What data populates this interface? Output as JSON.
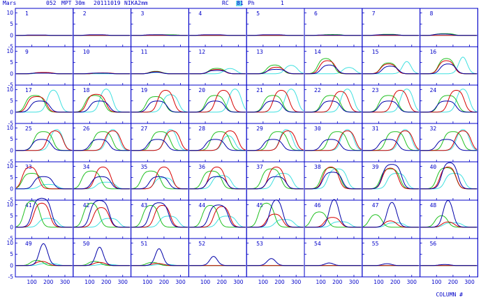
{
  "header": {
    "source": "Mars",
    "scan": "052",
    "telescope": "MPT 30m",
    "date": "20111019",
    "instrument": "NIKA2mm",
    "rc_label": "RC",
    "rc_value": "81",
    "ph_label": "Ph",
    "ph_value": "1"
  },
  "footer": {
    "xaxis_label": "COLUMN #"
  },
  "colors": {
    "axes": "#0000c8",
    "red": "#d60000",
    "green": "#21c021",
    "cyan": "#3fe0e0",
    "blue": "#0000a8",
    "highlight": "#6cd8ee"
  },
  "chart_data": {
    "type": "line",
    "grid_rows": 7,
    "grid_cols": 8,
    "panel_ids": [
      1,
      2,
      3,
      4,
      5,
      6,
      7,
      8,
      9,
      10,
      11,
      12,
      13,
      14,
      15,
      16,
      17,
      18,
      19,
      20,
      21,
      22,
      23,
      24,
      25,
      26,
      27,
      28,
      29,
      30,
      31,
      32,
      33,
      34,
      35,
      36,
      37,
      38,
      39,
      40,
      41,
      42,
      43,
      44,
      45,
      46,
      47,
      48,
      49,
      50,
      51,
      52,
      53,
      54,
      55,
      56
    ],
    "xlim": [
      0,
      350
    ],
    "ylim": [
      -5,
      12
    ],
    "x_ticks": [
      100,
      200,
      300
    ],
    "y_ticks": [
      -5,
      0,
      5,
      10
    ],
    "xlabel": "COLUMN #",
    "ylabel": "",
    "panels": [
      {
        "id": 1,
        "red": [
          0,
          0
        ],
        "green": [
          0,
          0
        ],
        "cyan": [
          0,
          0
        ],
        "blue": [
          0.2,
          130,
          70
        ]
      },
      {
        "id": 2,
        "red": [
          0,
          0
        ],
        "green": [
          0,
          0
        ],
        "cyan": [
          0,
          0
        ],
        "blue": [
          0.3,
          140,
          70
        ]
      },
      {
        "id": 3,
        "red": [
          0,
          0
        ],
        "green": [
          0.3,
          200,
          90
        ],
        "cyan": [
          0,
          0
        ],
        "blue": [
          0.3,
          150,
          70
        ]
      },
      {
        "id": 4,
        "red": [
          0,
          0
        ],
        "green": [
          0,
          0
        ],
        "cyan": [
          0,
          0
        ],
        "blue": [
          0.3,
          140,
          80
        ]
      },
      {
        "id": 5,
        "red": [
          0,
          0
        ],
        "green": [
          0,
          0
        ],
        "cyan": [
          0,
          0
        ],
        "blue": [
          0.3,
          150,
          80
        ]
      },
      {
        "id": 6,
        "red": [
          0,
          0
        ],
        "green": [
          0.4,
          170,
          60
        ],
        "cyan": [
          0,
          0
        ],
        "blue": [
          0.2,
          150,
          80
        ]
      },
      {
        "id": 7,
        "red": [
          0,
          0
        ],
        "green": [
          0.5,
          160,
          60
        ],
        "cyan": [
          0,
          0
        ],
        "blue": [
          0.3,
          150,
          80
        ]
      },
      {
        "id": 8,
        "red": [
          0,
          0
        ],
        "green": [
          0.8,
          150,
          60
        ],
        "cyan": [
          0,
          0
        ],
        "blue": [
          0.6,
          140,
          60
        ]
      },
      {
        "id": 9,
        "red": [
          0.6,
          170,
          60
        ],
        "green": [
          0.5,
          170,
          60
        ],
        "cyan": [
          0.4,
          180,
          60
        ],
        "blue": [
          0.3,
          160,
          70
        ]
      },
      {
        "id": 10,
        "red": [
          0.4,
          180,
          60
        ],
        "green": [
          0.3,
          180,
          60
        ],
        "cyan": [
          0,
          0
        ],
        "blue": [
          0.3,
          160,
          70
        ]
      },
      {
        "id": 11,
        "red": [
          1.0,
          150,
          40
        ],
        "green": [
          1.2,
          150,
          40
        ],
        "cyan": [
          0.6,
          160,
          50
        ],
        "blue": [
          0.8,
          150,
          40
        ]
      },
      {
        "id": 12,
        "red": [
          2.0,
          170,
          50
        ],
        "green": [
          2.5,
          170,
          50
        ],
        "cyan": [
          2.5,
          250,
          40
        ],
        "blue": [
          1.5,
          170,
          60
        ]
      },
      {
        "id": 13,
        "red": [
          3.0,
          180,
          50
        ],
        "green": [
          4.0,
          170,
          50
        ],
        "cyan": [
          4.0,
          270,
          40
        ],
        "blue": [
          2.0,
          180,
          60
        ]
      },
      {
        "id": 14,
        "red": [
          6.0,
          140,
          50
        ],
        "green": [
          7.0,
          130,
          50
        ],
        "cyan": [
          3.0,
          270,
          40
        ],
        "blue": [
          4.0,
          150,
          50
        ]
      },
      {
        "id": 15,
        "red": [
          4.5,
          160,
          50
        ],
        "green": [
          5.0,
          160,
          50
        ],
        "cyan": [
          7.0,
          270,
          25
        ],
        "blue": [
          3.5,
          170,
          50
        ]
      },
      {
        "id": 16,
        "red": [
          6.0,
          160,
          50
        ],
        "green": [
          7.0,
          160,
          50
        ],
        "cyan": [
          9.5,
          260,
          25
        ],
        "blue": [
          4.5,
          170,
          50
        ]
      },
      {
        "id": 17,
        "red": [
          7.0,
          130,
          60
        ],
        "green": [
          7.5,
          120,
          60
        ],
        "cyan": [
          10.5,
          230,
          40
        ],
        "blue": [
          5.0,
          150,
          60
        ]
      },
      {
        "id": 18,
        "red": [
          8.0,
          140,
          60
        ],
        "green": [
          7.5,
          130,
          60
        ],
        "cyan": [
          11.0,
          200,
          40
        ],
        "blue": [
          5.0,
          160,
          60
        ]
      },
      {
        "id": 19,
        "red": [
          10.0,
          210,
          50
        ],
        "green": [
          7.0,
          150,
          60
        ],
        "cyan": [
          8.0,
          240,
          50
        ],
        "blue": [
          5.0,
          160,
          60
        ]
      },
      {
        "id": 20,
        "red": [
          10.0,
          210,
          50
        ],
        "green": [
          7.5,
          160,
          60
        ],
        "cyan": [
          11.0,
          280,
          40
        ],
        "blue": [
          5.0,
          160,
          60
        ]
      },
      {
        "id": 21,
        "red": [
          10.0,
          210,
          50
        ],
        "green": [
          7.5,
          160,
          60
        ],
        "cyan": [
          11.0,
          270,
          40
        ],
        "blue": [
          5.0,
          160,
          60
        ]
      },
      {
        "id": 22,
        "red": [
          9.5,
          220,
          50
        ],
        "green": [
          7.5,
          160,
          60
        ],
        "cyan": [
          11.0,
          260,
          40
        ],
        "blue": [
          5.0,
          160,
          60
        ]
      },
      {
        "id": 23,
        "red": [
          10.0,
          230,
          50
        ],
        "green": [
          7.5,
          160,
          60
        ],
        "cyan": [
          11.0,
          270,
          40
        ],
        "blue": [
          5.0,
          160,
          60
        ]
      },
      {
        "id": 24,
        "red": [
          10.0,
          220,
          50
        ],
        "green": [
          7.5,
          170,
          60
        ],
        "cyan": [
          11.0,
          260,
          40
        ],
        "blue": [
          5.0,
          160,
          60
        ]
      },
      {
        "id": 25,
        "red": [
          9.0,
          240,
          50
        ],
        "green": [
          8.5,
          170,
          60
        ],
        "cyan": [
          10.0,
          250,
          40
        ],
        "blue": [
          5.0,
          160,
          60
        ]
      },
      {
        "id": 26,
        "red": [
          9.0,
          240,
          50
        ],
        "green": [
          8.5,
          180,
          60
        ],
        "cyan": [
          10.0,
          240,
          40
        ],
        "blue": [
          5.0,
          160,
          60
        ]
      },
      {
        "id": 27,
        "red": [
          9.0,
          250,
          50
        ],
        "green": [
          8.5,
          180,
          60
        ],
        "cyan": [
          10.0,
          240,
          40
        ],
        "blue": [
          5.0,
          160,
          60
        ]
      },
      {
        "id": 28,
        "red": [
          9.0,
          250,
          50
        ],
        "green": [
          8.5,
          190,
          60
        ],
        "cyan": [
          7.0,
          240,
          40
        ],
        "blue": [
          5.0,
          160,
          60
        ]
      },
      {
        "id": 29,
        "red": [
          9.0,
          250,
          50
        ],
        "green": [
          8.5,
          190,
          60
        ],
        "cyan": [
          10.0,
          240,
          40
        ],
        "blue": [
          5.0,
          160,
          60
        ]
      },
      {
        "id": 30,
        "red": [
          9.0,
          260,
          50
        ],
        "green": [
          8.5,
          200,
          60
        ],
        "cyan": [
          10.0,
          260,
          40
        ],
        "blue": [
          5.0,
          160,
          60
        ]
      },
      {
        "id": 31,
        "red": [
          9.0,
          260,
          50
        ],
        "green": [
          8.5,
          200,
          60
        ],
        "cyan": [
          10.0,
          260,
          40
        ],
        "blue": [
          5.0,
          160,
          60
        ]
      },
      {
        "id": 32,
        "red": [
          9.0,
          260,
          50
        ],
        "green": [
          8.5,
          200,
          60
        ],
        "cyan": [
          10.0,
          260,
          40
        ],
        "blue": [
          5.0,
          160,
          60
        ]
      },
      {
        "id": 33,
        "red": [
          10.0,
          90,
          50
        ],
        "green": [
          7.0,
          100,
          60
        ],
        "cyan": [
          2.0,
          200,
          60
        ],
        "blue": [
          5.5,
          170,
          60
        ]
      },
      {
        "id": 34,
        "red": [
          10.0,
          180,
          50
        ],
        "green": [
          8.0,
          110,
          60
        ],
        "cyan": [
          3.0,
          200,
          60
        ],
        "blue": [
          5.5,
          170,
          60
        ]
      },
      {
        "id": 35,
        "red": [
          10.0,
          200,
          50
        ],
        "green": [
          8.0,
          120,
          60
        ],
        "cyan": [
          5.0,
          200,
          60
        ],
        "blue": [
          5.5,
          170,
          60
        ]
      },
      {
        "id": 36,
        "red": [
          10.0,
          170,
          50
        ],
        "green": [
          8.0,
          140,
          60
        ],
        "cyan": [
          6.0,
          200,
          60
        ],
        "blue": [
          5.5,
          170,
          60
        ]
      },
      {
        "id": 37,
        "red": [
          10.0,
          180,
          50
        ],
        "green": [
          9.0,
          150,
          60
        ],
        "cyan": [
          7.0,
          220,
          60
        ],
        "blue": [
          5.5,
          180,
          60
        ]
      },
      {
        "id": 38,
        "red": [
          10.0,
          160,
          50
        ],
        "green": [
          9.5,
          160,
          60
        ],
        "cyan": [
          9.0,
          200,
          60
        ],
        "blue": [
          7.5,
          170,
          60
        ]
      },
      {
        "id": 39,
        "red": [
          9.5,
          170,
          50
        ],
        "green": [
          9.0,
          170,
          60
        ],
        "cyan": [
          7.0,
          210,
          60
        ],
        "blue": [
          11.0,
          180,
          60
        ]
      },
      {
        "id": 40,
        "red": [
          10.0,
          170,
          50
        ],
        "green": [
          9.5,
          160,
          60
        ],
        "cyan": [
          7.0,
          210,
          60
        ],
        "blue": [
          12.0,
          180,
          50
        ]
      },
      {
        "id": 41,
        "red": [
          11.0,
          160,
          50
        ],
        "green": [
          12.0,
          100,
          50
        ],
        "cyan": [
          4.0,
          200,
          60
        ],
        "blue": [
          13.0,
          160,
          60
        ]
      },
      {
        "id": 42,
        "red": [
          9.0,
          170,
          50
        ],
        "green": [
          11.0,
          110,
          50
        ],
        "cyan": [
          4.0,
          220,
          60
        ],
        "blue": [
          12.0,
          160,
          60
        ]
      },
      {
        "id": 43,
        "red": [
          10.0,
          190,
          50
        ],
        "green": [
          10.0,
          120,
          50
        ],
        "cyan": [
          5.0,
          230,
          60
        ],
        "blue": [
          11.0,
          170,
          60
        ]
      },
      {
        "id": 44,
        "red": [
          9.5,
          200,
          50
        ],
        "green": [
          10.0,
          130,
          50
        ],
        "cyan": [
          5.0,
          230,
          60
        ],
        "blue": [
          10.0,
          180,
          60
        ]
      },
      {
        "id": 45,
        "red": [
          6.0,
          170,
          50
        ],
        "green": [
          11.0,
          120,
          50
        ],
        "cyan": [
          3.5,
          230,
          60
        ],
        "blue": [
          13.0,
          180,
          40
        ]
      },
      {
        "id": 46,
        "red": [
          4.5,
          170,
          50
        ],
        "green": [
          7.0,
          90,
          50
        ],
        "cyan": [
          2.5,
          220,
          60
        ],
        "blue": [
          14.5,
          180,
          30
        ]
      },
      {
        "id": 47,
        "red": [
          3.0,
          170,
          40
        ],
        "green": [
          6.0,
          80,
          40
        ],
        "cyan": [
          2.0,
          200,
          60
        ],
        "blue": [
          13.0,
          180,
          30
        ]
      },
      {
        "id": 48,
        "red": [
          2.5,
          170,
          40
        ],
        "green": [
          5.5,
          130,
          40
        ],
        "cyan": [
          2.0,
          200,
          60
        ],
        "blue": [
          14.0,
          170,
          30
        ]
      },
      {
        "id": 49,
        "red": [
          2.0,
          160,
          40
        ],
        "green": [
          2.5,
          130,
          40
        ],
        "cyan": [
          1.0,
          200,
          60
        ],
        "blue": [
          12.5,
          170,
          25
        ]
      },
      {
        "id": 50,
        "red": [
          1.5,
          160,
          40
        ],
        "green": [
          2.0,
          130,
          40
        ],
        "cyan": [
          0.5,
          200,
          60
        ],
        "blue": [
          12.0,
          160,
          20
        ]
      },
      {
        "id": 51,
        "red": [
          1.0,
          160,
          40
        ],
        "green": [
          1.5,
          130,
          40
        ],
        "cyan": [
          0.5,
          200,
          60
        ],
        "blue": [
          11.0,
          170,
          20
        ]
      },
      {
        "id": 52,
        "red": [
          0,
          0
        ],
        "green": [
          0,
          0
        ],
        "cyan": [
          0,
          0
        ],
        "blue": [
          6.0,
          150,
          20
        ]
      },
      {
        "id": 53,
        "red": [
          0,
          0
        ],
        "green": [
          0,
          0
        ],
        "cyan": [
          0,
          0
        ],
        "blue": [
          4.0,
          150,
          25
        ]
      },
      {
        "id": 54,
        "red": [
          0,
          0
        ],
        "green": [
          0,
          0
        ],
        "cyan": [
          0,
          0
        ],
        "blue": [
          1.5,
          150,
          25
        ]
      },
      {
        "id": 55,
        "red": [
          0,
          0
        ],
        "green": [
          0,
          0
        ],
        "cyan": [
          0,
          0
        ],
        "blue": [
          1.0,
          150,
          30
        ]
      },
      {
        "id": 56,
        "red": [
          0,
          0
        ],
        "green": [
          0,
          0
        ],
        "cyan": [
          0,
          0
        ],
        "blue": [
          0.5,
          150,
          40
        ]
      }
    ]
  }
}
